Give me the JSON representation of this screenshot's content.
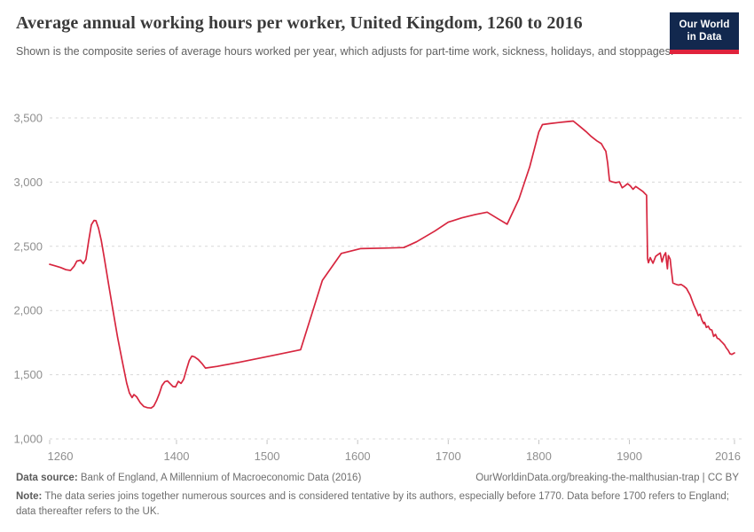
{
  "header": {
    "title": "Average annual working hours per worker, United Kingdom, 1260 to 2016",
    "subtitle": "Shown is the composite series of average hours worked per year, which adjusts for part-time work, sickness, holidays, and stoppages."
  },
  "logo": {
    "line1": "Our World",
    "line2": "in Data"
  },
  "footer": {
    "source_label": "Data source:",
    "source_text": " Bank of England, A Millennium of Macroeconomic Data (2016)",
    "citation": "OurWorldinData.org/breaking-the-malthusian-trap | CC BY",
    "note_label": "Note:",
    "note_text": " The data series joins together numerous sources and is considered tentative by its authors, especially before 1770. Data before 1700 refers to England; data thereafter refers to the UK."
  },
  "colors": {
    "line": "#d7263f",
    "grid": "#d8d8d8",
    "axis_text": "#8f8f8f",
    "tick_mark": "#c4c4c4",
    "logo_bg": "#12284e",
    "logo_stripe": "#e0233c"
  },
  "chart_data": {
    "type": "line",
    "title": "Average annual working hours per worker, United Kingdom, 1260 to 2016",
    "xlabel": "",
    "ylabel": "",
    "xlim": [
      1260,
      2016
    ],
    "ylim": [
      1000,
      3500
    ],
    "grid": "dashed-horizontal",
    "legend": "none",
    "x_ticks": [
      {
        "value": 1260,
        "label": "1260"
      },
      {
        "value": 1400,
        "label": "1400"
      },
      {
        "value": 1500,
        "label": "1500"
      },
      {
        "value": 1600,
        "label": "1600"
      },
      {
        "value": 1700,
        "label": "1700"
      },
      {
        "value": 1800,
        "label": "1800"
      },
      {
        "value": 1900,
        "label": "1900"
      },
      {
        "value": 2016,
        "label": "2016"
      }
    ],
    "y_ticks": [
      {
        "value": 1000,
        "label": "1,000"
      },
      {
        "value": 1500,
        "label": "1,500"
      },
      {
        "value": 2000,
        "label": "2,000"
      },
      {
        "value": 2500,
        "label": "2,500"
      },
      {
        "value": 3000,
        "label": "3,000"
      },
      {
        "value": 3500,
        "label": "3,500"
      }
    ],
    "series": [
      {
        "name": "United Kingdom",
        "color": "#d7263f",
        "points": [
          [
            1260,
            2360
          ],
          [
            1266,
            2348
          ],
          [
            1272,
            2335
          ],
          [
            1278,
            2318
          ],
          [
            1283,
            2312
          ],
          [
            1287,
            2345
          ],
          [
            1290,
            2385
          ],
          [
            1294,
            2392
          ],
          [
            1297,
            2365
          ],
          [
            1300,
            2398
          ],
          [
            1303,
            2540
          ],
          [
            1306,
            2668
          ],
          [
            1309,
            2702
          ],
          [
            1311,
            2700
          ],
          [
            1314,
            2640
          ],
          [
            1317,
            2545
          ],
          [
            1320,
            2420
          ],
          [
            1325,
            2205
          ],
          [
            1330,
            1995
          ],
          [
            1335,
            1790
          ],
          [
            1340,
            1610
          ],
          [
            1345,
            1435
          ],
          [
            1348,
            1358
          ],
          [
            1351,
            1322
          ],
          [
            1353,
            1345
          ],
          [
            1356,
            1328
          ],
          [
            1360,
            1282
          ],
          [
            1364,
            1252
          ],
          [
            1368,
            1243
          ],
          [
            1372,
            1240
          ],
          [
            1375,
            1256
          ],
          [
            1378,
            1298
          ],
          [
            1381,
            1352
          ],
          [
            1384,
            1415
          ],
          [
            1387,
            1445
          ],
          [
            1390,
            1452
          ],
          [
            1393,
            1430
          ],
          [
            1396,
            1408
          ],
          [
            1399,
            1405
          ],
          [
            1402,
            1448
          ],
          [
            1405,
            1432
          ],
          [
            1408,
            1465
          ],
          [
            1411,
            1540
          ],
          [
            1414,
            1610
          ],
          [
            1417,
            1645
          ],
          [
            1420,
            1638
          ],
          [
            1424,
            1618
          ],
          [
            1428,
            1588
          ],
          [
            1432,
            1552
          ],
          [
            1445,
            1565
          ],
          [
            1470,
            1598
          ],
          [
            1505,
            1648
          ],
          [
            1537,
            1695
          ],
          [
            1561,
            2235
          ],
          [
            1582,
            2445
          ],
          [
            1603,
            2482
          ],
          [
            1630,
            2486
          ],
          [
            1651,
            2490
          ],
          [
            1665,
            2535
          ],
          [
            1685,
            2618
          ],
          [
            1700,
            2688
          ],
          [
            1715,
            2722
          ],
          [
            1730,
            2748
          ],
          [
            1743,
            2766
          ],
          [
            1754,
            2718
          ],
          [
            1765,
            2672
          ],
          [
            1778,
            2868
          ],
          [
            1790,
            3120
          ],
          [
            1800,
            3390
          ],
          [
            1804,
            3448
          ],
          [
            1812,
            3456
          ],
          [
            1822,
            3464
          ],
          [
            1832,
            3472
          ],
          [
            1838,
            3476
          ],
          [
            1845,
            3436
          ],
          [
            1852,
            3394
          ],
          [
            1858,
            3354
          ],
          [
            1864,
            3322
          ],
          [
            1869,
            3300
          ],
          [
            1872,
            3262
          ],
          [
            1874,
            3240
          ],
          [
            1876,
            3150
          ],
          [
            1878,
            3012
          ],
          [
            1881,
            3002
          ],
          [
            1885,
            2996
          ],
          [
            1889,
            3002
          ],
          [
            1892,
            2956
          ],
          [
            1895,
            2970
          ],
          [
            1898,
            2988
          ],
          [
            1901,
            2970
          ],
          [
            1904,
            2944
          ],
          [
            1907,
            2966
          ],
          [
            1911,
            2946
          ],
          [
            1915,
            2926
          ],
          [
            1919,
            2898
          ],
          [
            1920,
            2405
          ],
          [
            1921,
            2372
          ],
          [
            1923,
            2412
          ],
          [
            1926,
            2368
          ],
          [
            1929,
            2422
          ],
          [
            1932,
            2438
          ],
          [
            1934,
            2448
          ],
          [
            1936,
            2378
          ],
          [
            1938,
            2425
          ],
          [
            1940,
            2450
          ],
          [
            1941,
            2380
          ],
          [
            1942,
            2325
          ],
          [
            1943,
            2428
          ],
          [
            1945,
            2400
          ],
          [
            1946,
            2335
          ],
          [
            1948,
            2215
          ],
          [
            1951,
            2205
          ],
          [
            1954,
            2198
          ],
          [
            1957,
            2203
          ],
          [
            1960,
            2190
          ],
          [
            1963,
            2172
          ],
          [
            1967,
            2120
          ],
          [
            1971,
            2045
          ],
          [
            1974,
            1998
          ],
          [
            1976,
            1960
          ],
          [
            1978,
            1972
          ],
          [
            1980,
            1928
          ],
          [
            1982,
            1898
          ],
          [
            1983,
            1908
          ],
          [
            1985,
            1868
          ],
          [
            1987,
            1878
          ],
          [
            1989,
            1852
          ],
          [
            1991,
            1848
          ],
          [
            1993,
            1798
          ],
          [
            1995,
            1814
          ],
          [
            1997,
            1784
          ],
          [
            1999,
            1778
          ],
          [
            2001,
            1762
          ],
          [
            2003,
            1748
          ],
          [
            2005,
            1732
          ],
          [
            2007,
            1708
          ],
          [
            2009,
            1690
          ],
          [
            2011,
            1664
          ],
          [
            2013,
            1658
          ],
          [
            2016,
            1670
          ]
        ]
      }
    ]
  }
}
